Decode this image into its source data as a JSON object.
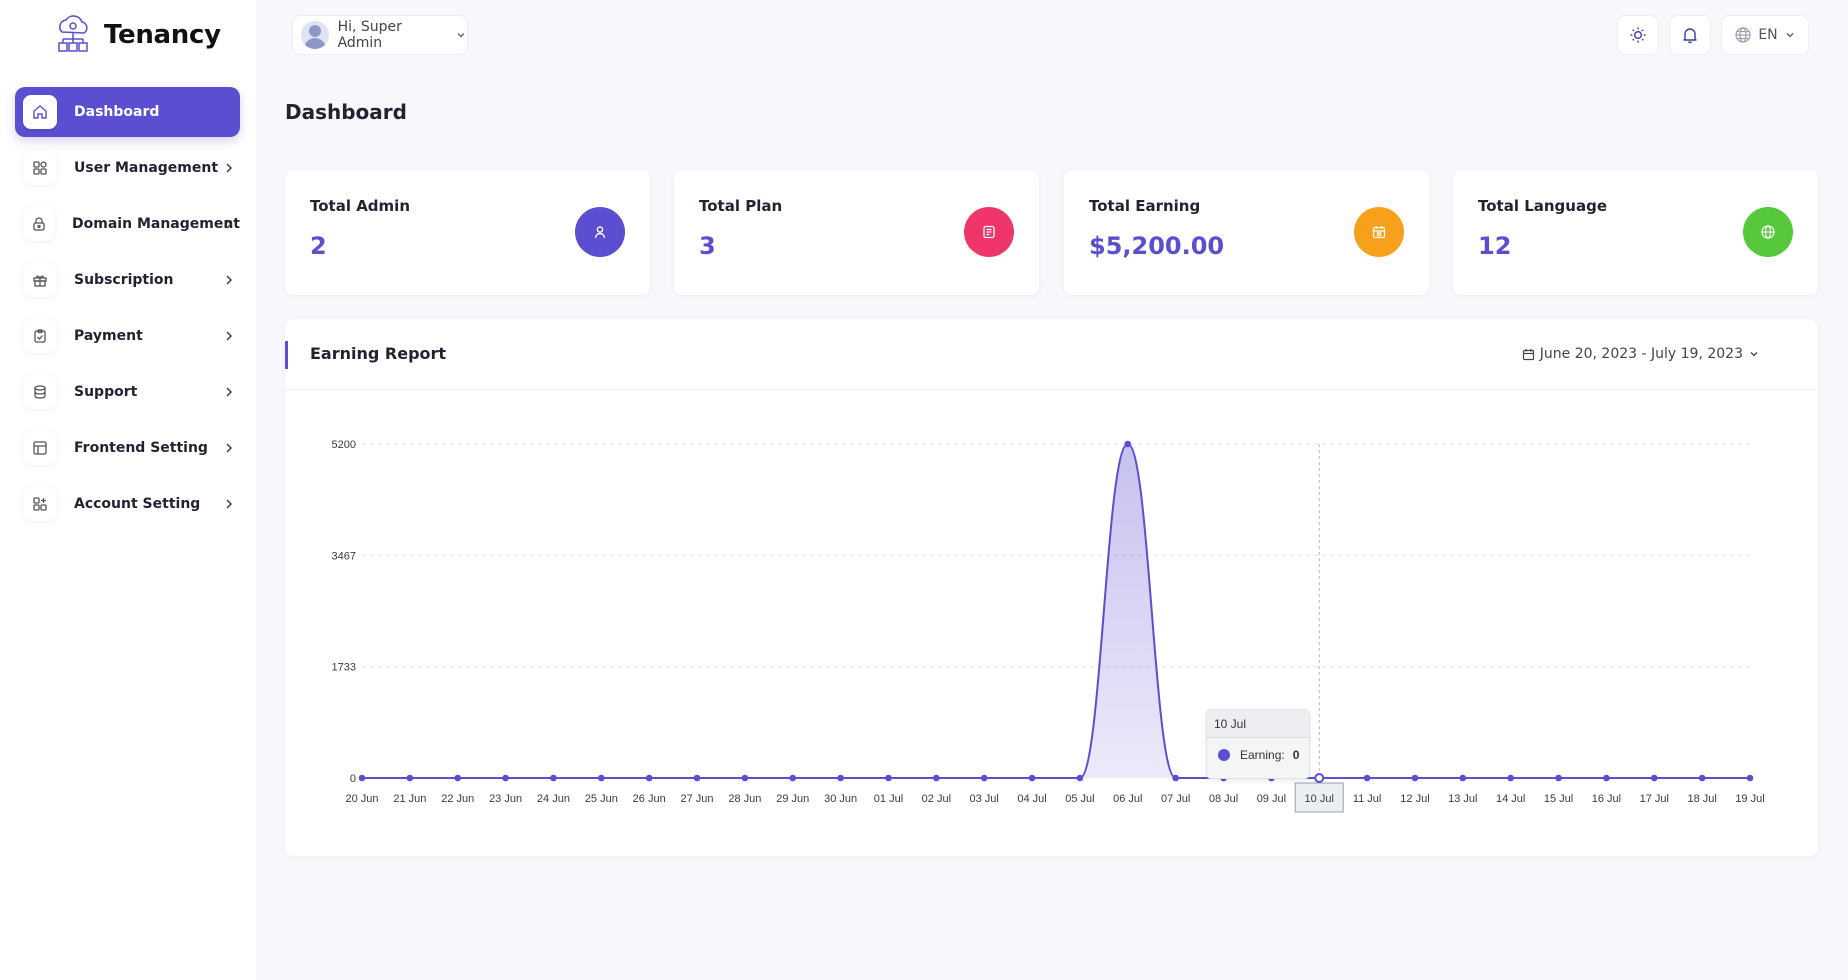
{
  "app": {
    "name": "Tenancy"
  },
  "sidebar": {
    "items": [
      {
        "label": "Dashboard",
        "icon": "home-icon",
        "active": true
      },
      {
        "label": "User Management",
        "icon": "grid-icon"
      },
      {
        "label": "Domain Management",
        "icon": "lock-icon"
      },
      {
        "label": "Subscription",
        "icon": "gift-icon"
      },
      {
        "label": "Payment",
        "icon": "clipboard-icon"
      },
      {
        "label": "Support",
        "icon": "database-icon"
      },
      {
        "label": "Frontend Setting",
        "icon": "layout-icon"
      },
      {
        "label": "Account Setting",
        "icon": "apps-plus-icon"
      }
    ]
  },
  "header": {
    "greeting": "Hi, Super Admin",
    "language": "EN"
  },
  "page": {
    "title": "Dashboard"
  },
  "stats": [
    {
      "label": "Total Admin",
      "value": "2",
      "icon": "user-icon",
      "color": "#5b4ed1"
    },
    {
      "label": "Total Plan",
      "value": "3",
      "icon": "document-icon",
      "color": "#f0356b"
    },
    {
      "label": "Total Earning",
      "value": "$5,200.00",
      "icon": "calendar-icon",
      "color": "#f7a01c"
    },
    {
      "label": "Total Language",
      "value": "12",
      "icon": "globe-icon",
      "color": "#55c83b"
    }
  ],
  "report": {
    "title": "Earning Report",
    "date_range": "June 20, 2023 - July 19, 2023"
  },
  "tooltip": {
    "title": "10 Jul",
    "series": "Earning:",
    "value": "0"
  },
  "colors": {
    "accent": "#5b4ed1"
  },
  "chart_data": {
    "type": "area",
    "y_ticks": [
      "0",
      "1733",
      "3467",
      "5200"
    ],
    "ylim": [
      0,
      5200
    ],
    "grid": true,
    "categories": [
      "20 Jun",
      "21 Jun",
      "22 Jun",
      "23 Jun",
      "24 Jun",
      "25 Jun",
      "26 Jun",
      "27 Jun",
      "28 Jun",
      "29 Jun",
      "30 Jun",
      "01 Jul",
      "02 Jul",
      "03 Jul",
      "04 Jul",
      "05 Jul",
      "06 Jul",
      "07 Jul",
      "08 Jul",
      "09 Jul",
      "10 Jul",
      "11 Jul",
      "12 Jul",
      "13 Jul",
      "14 Jul",
      "15 Jul",
      "16 Jul",
      "17 Jul",
      "18 Jul",
      "19 Jul"
    ],
    "series": [
      {
        "values": [
          0,
          0,
          0,
          0,
          0,
          0,
          0,
          0,
          0,
          0,
          0,
          0,
          0,
          0,
          0,
          0,
          5200,
          0,
          0,
          0,
          0,
          0,
          0,
          0,
          0,
          0,
          0,
          0,
          0,
          0
        ]
      }
    ],
    "highlighted_category": "10 Jul"
  }
}
